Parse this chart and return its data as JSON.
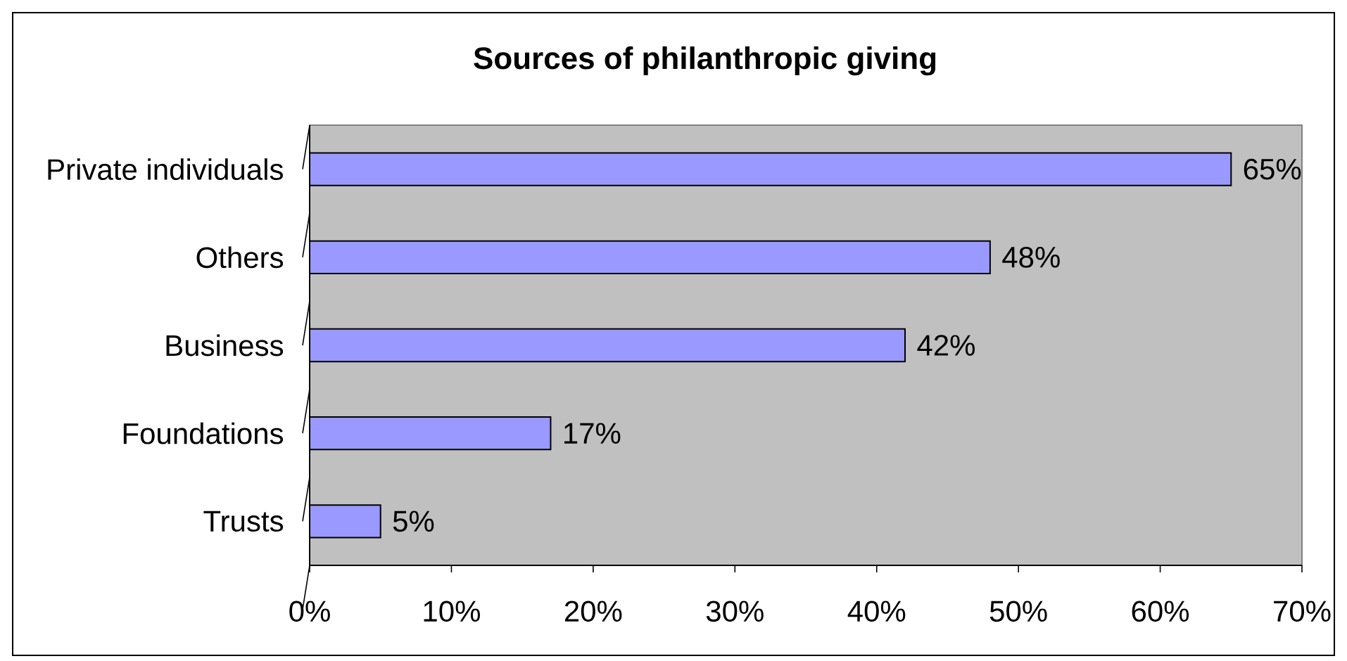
{
  "chart_data": {
    "type": "bar",
    "orientation": "horizontal",
    "title": "Sources of philanthropic giving",
    "categories": [
      "Private individuals",
      "Others",
      "Business",
      "Foundations",
      "Trusts"
    ],
    "values": [
      65,
      48,
      42,
      17,
      5
    ],
    "color": "#9999ff",
    "value_labels": [
      "65%",
      "48%",
      "42%",
      "17%",
      "5%"
    ],
    "xlim": [
      0,
      70
    ],
    "xticks": [
      {
        "value": 0,
        "label": "0%"
      },
      {
        "value": 10,
        "label": "10%"
      },
      {
        "value": 20,
        "label": "20%"
      },
      {
        "value": 30,
        "label": "30%"
      },
      {
        "value": 40,
        "label": "40%"
      },
      {
        "value": 50,
        "label": "50%"
      },
      {
        "value": 60,
        "label": "60%"
      },
      {
        "value": 70,
        "label": "70%"
      }
    ]
  }
}
